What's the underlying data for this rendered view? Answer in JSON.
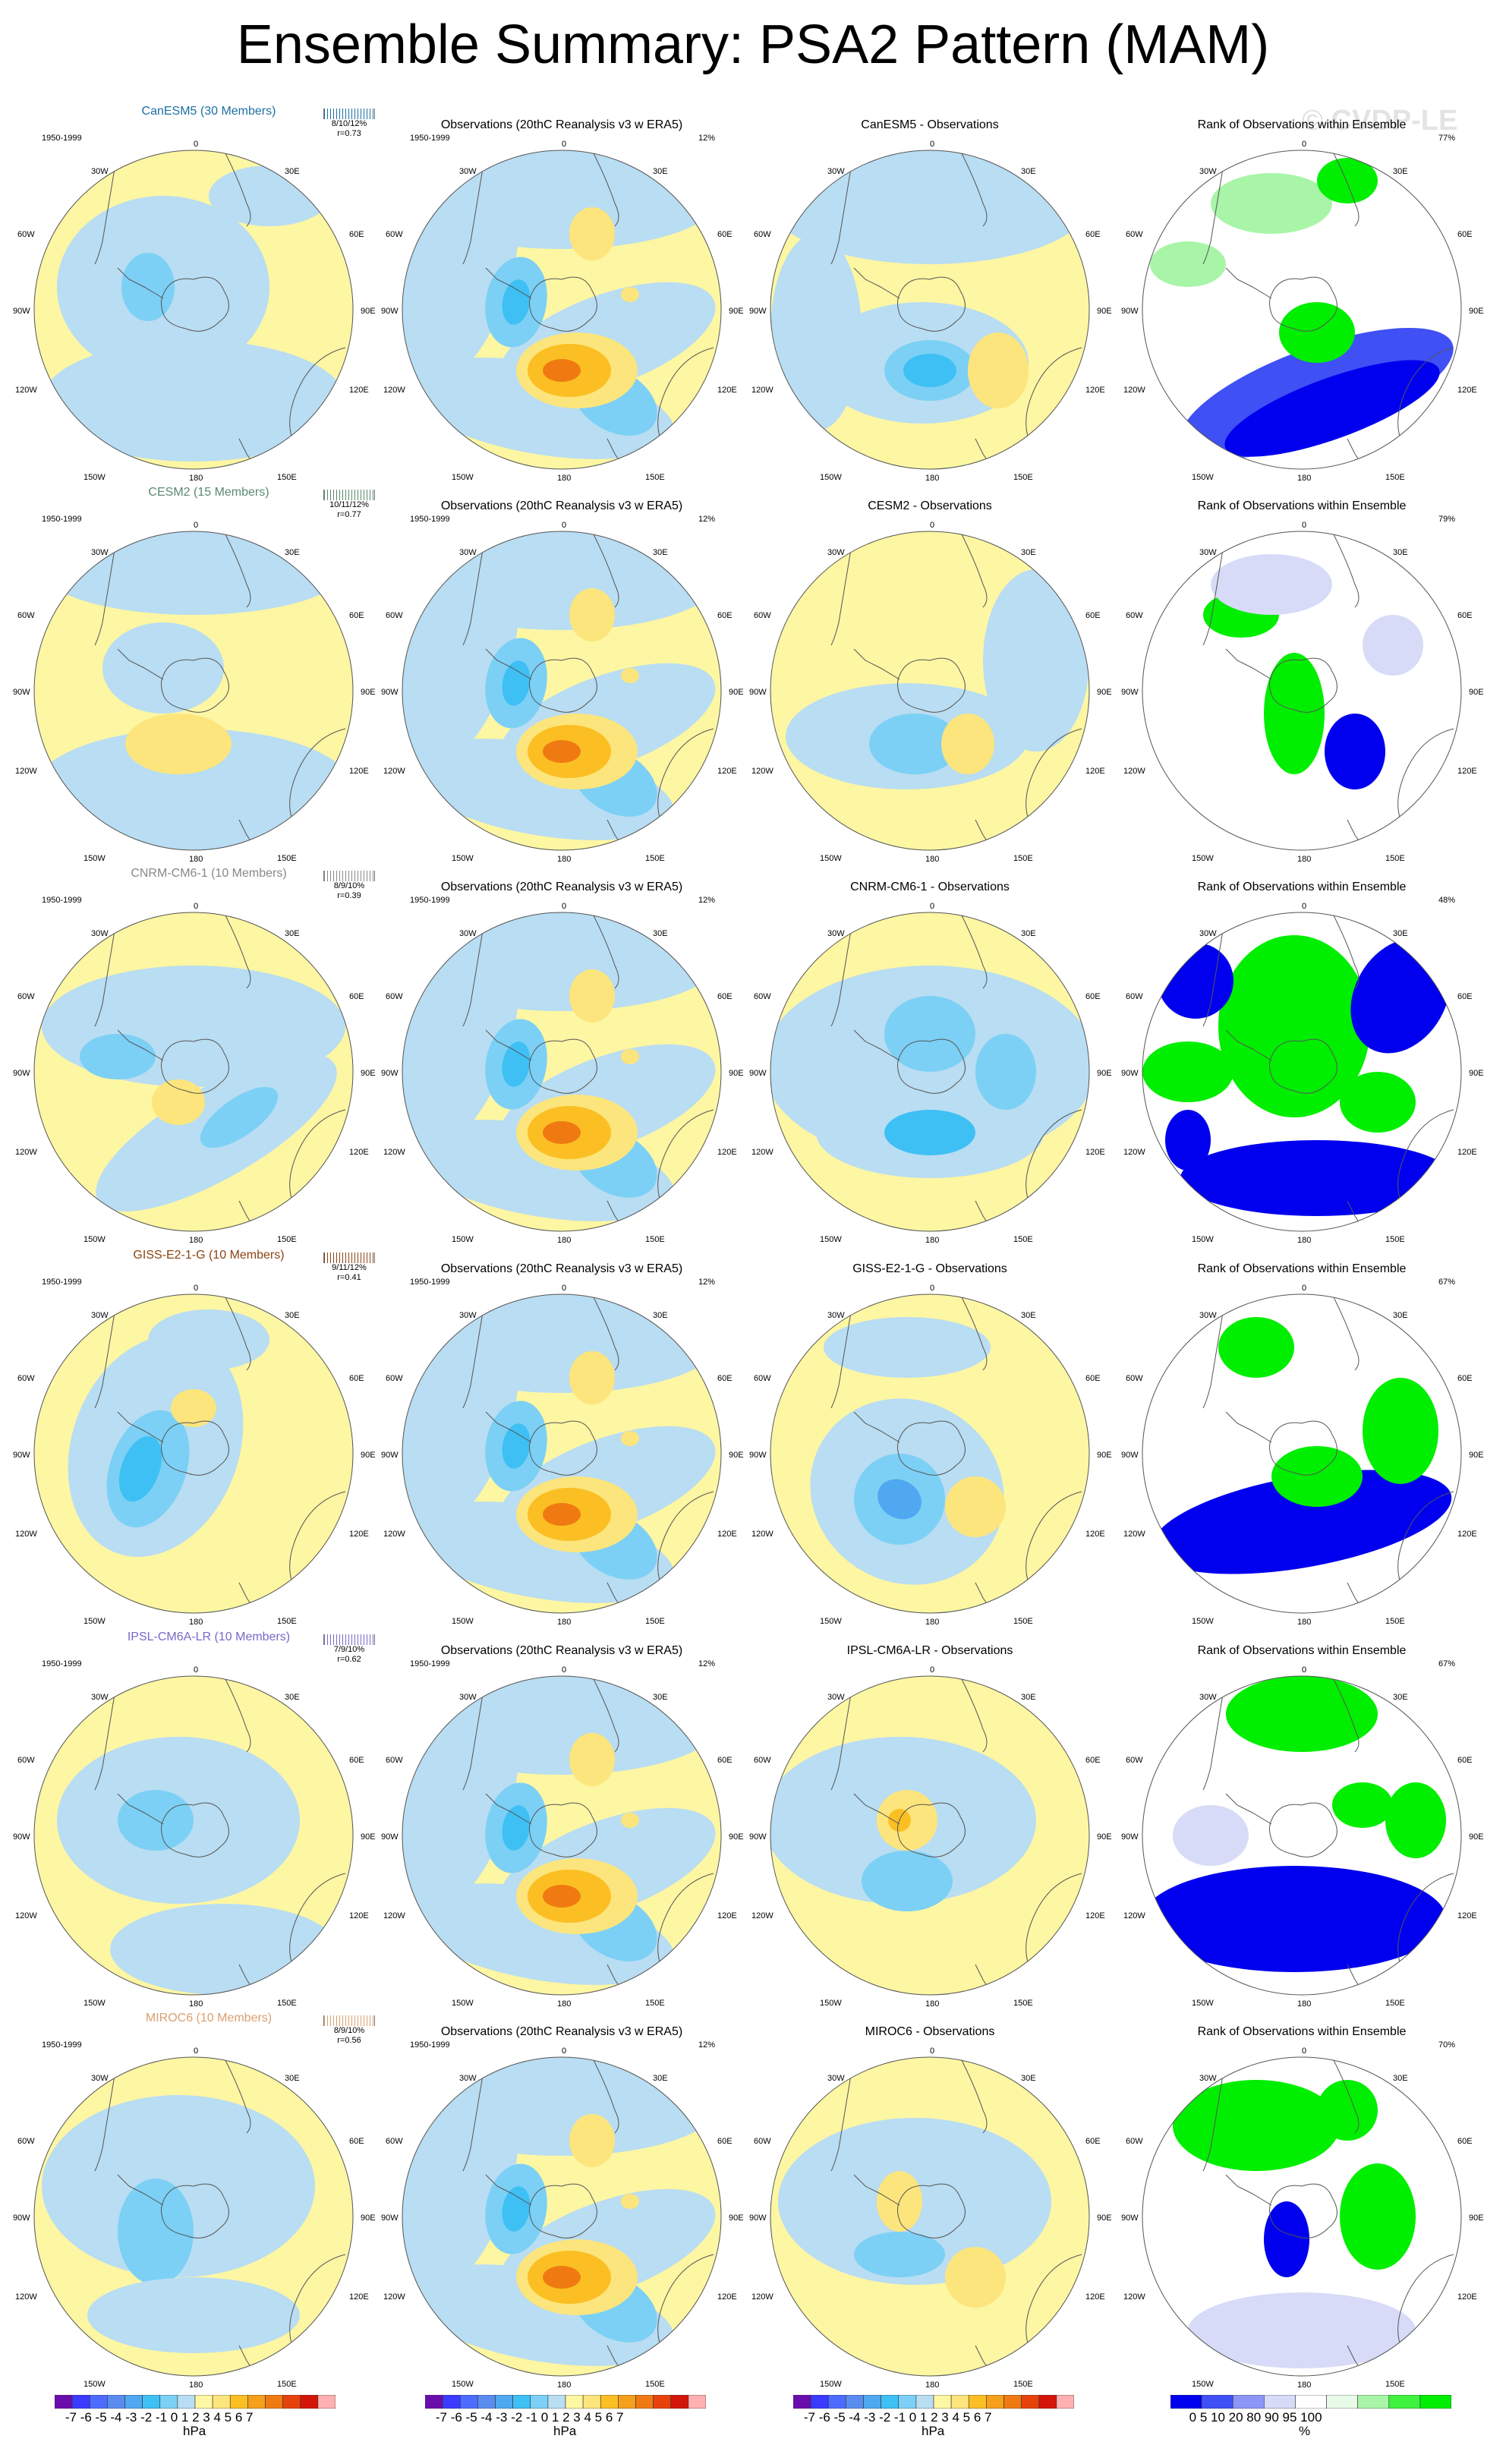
{
  "title": "Ensemble Summary: PSA2 Pattern (MAM)",
  "watermark": "© CVDP-LE",
  "period_label": "1950-1999",
  "obs_title": "Observations (20thC Reanalysis v3 w ERA5)",
  "obs_pct": "12%",
  "rank_title": "Rank of Observations within Ensemble",
  "lon_labels": {
    "top": "0",
    "r1": "30E",
    "r2": "60E",
    "r3": "90E",
    "r4": "120E",
    "r5": "150E",
    "bottom": "180",
    "l5": "150W",
    "l4": "120W",
    "l3": "90W",
    "l2": "60W",
    "l1": "30W"
  },
  "models": [
    {
      "name": "CanESM5 (30 Members)",
      "color": "#1d6fa3",
      "stats_pct": "8/10/12%",
      "stats_r": "r=0.73",
      "diff_title": "CanESM5 - Observations",
      "rank_pct": "77%"
    },
    {
      "name": "CESM2 (15 Members)",
      "color": "#5b8a6d",
      "stats_pct": "10/11/12%",
      "stats_r": "r=0.77",
      "diff_title": "CESM2 - Observations",
      "rank_pct": "79%"
    },
    {
      "name": "CNRM-CM6-1 (10 Members)",
      "color": "#888888",
      "stats_pct": "8/9/10%",
      "stats_r": "r=0.39",
      "diff_title": "CNRM-CM6-1 - Observations",
      "rank_pct": "48%"
    },
    {
      "name": "GISS-E2-1-G (10 Members)",
      "color": "#8b4513",
      "stats_pct": "9/11/12%",
      "stats_r": "r=0.41",
      "diff_title": "GISS-E2-1-G - Observations",
      "rank_pct": "67%"
    },
    {
      "name": "IPSL-CM6A-LR (10 Members)",
      "color": "#7b68c8",
      "stats_pct": "7/9/10%",
      "stats_r": "r=0.62",
      "diff_title": "IPSL-CM6A-LR - Observations",
      "rank_pct": "67%"
    },
    {
      "name": "MIROC6 (10 Members)",
      "color": "#d9a070",
      "stats_pct": "8/9/10%",
      "stats_r": "r=0.56",
      "diff_title": "MIROC6 - Observations",
      "rank_pct": "70%"
    }
  ],
  "colorbar_hpa": {
    "labels": "-7 -6 -5 -4 -3 -2 -1 0  1  2  3  4  5  6  7",
    "unit": "hPa",
    "colors": [
      "#6a0dad",
      "#3b3bff",
      "#4d6bff",
      "#5a8cf0",
      "#4fa8f0",
      "#3ec0f5",
      "#7cd0f5",
      "#b9ddf2",
      "#fdf6a3",
      "#fce57c",
      "#fbbf24",
      "#f59f1b",
      "#f07a12",
      "#e8420c",
      "#d4160a",
      "#ffb0b0"
    ]
  },
  "colorbar_rank": {
    "labels": "0   5  10    20    80    90  95 100",
    "unit": "%",
    "colors": [
      "#0000ee",
      "#3f50f5",
      "#8c96f7",
      "#d7dbf7",
      "#ffffff",
      "#e8fbe8",
      "#a8f5a8",
      "#3ef23e",
      "#00ee00"
    ]
  }
}
